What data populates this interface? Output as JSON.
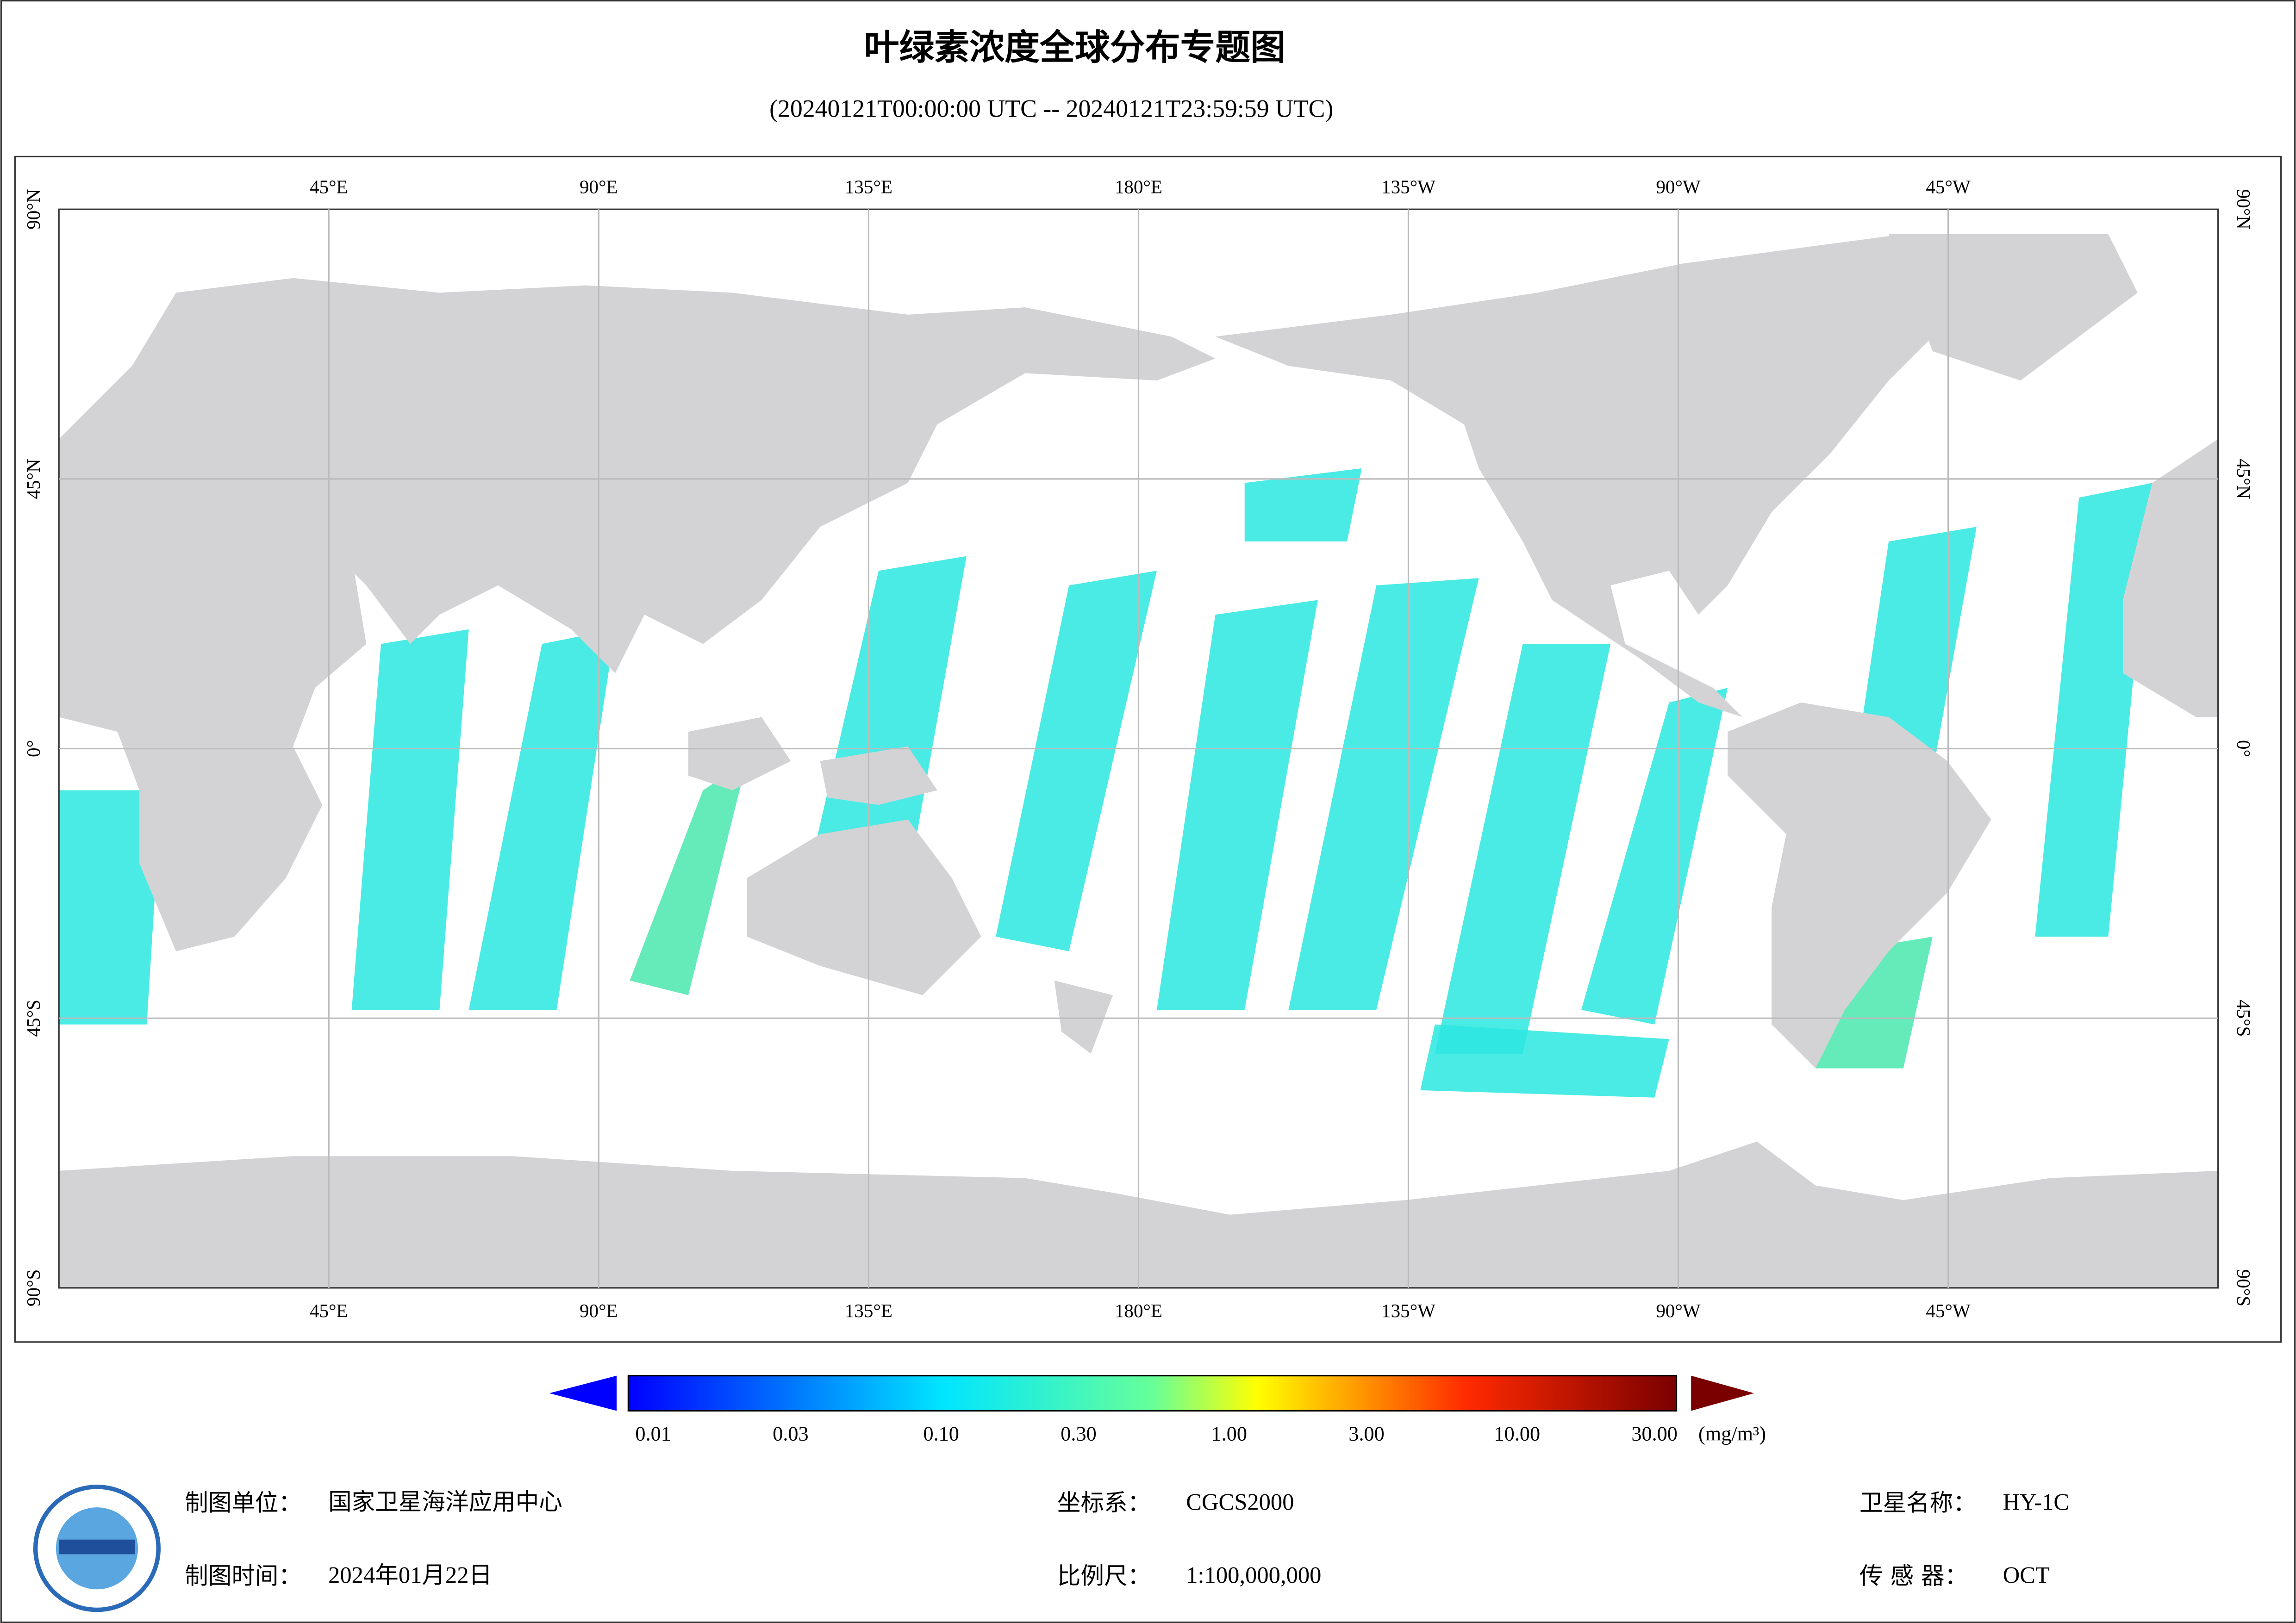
{
  "header": {
    "title": "叶绿素浓度全球分布专题图",
    "subtitle": "(20240121T00:00:00 UTC -- 20240121T23:59:59 UTC)"
  },
  "map": {
    "xlim": [
      0,
      360
    ],
    "ylim": [
      -90,
      90
    ],
    "grid": true,
    "lon_ticks": [
      {
        "value": 45,
        "label": "45°E"
      },
      {
        "value": 90,
        "label": "90°E"
      },
      {
        "value": 135,
        "label": "135°E"
      },
      {
        "value": 180,
        "label": "180°E"
      },
      {
        "value": -135,
        "label": "135°W"
      },
      {
        "value": -90,
        "label": "90°W"
      },
      {
        "value": -45,
        "label": "45°W"
      }
    ],
    "lat_ticks": [
      {
        "value": 90,
        "label": "90°N"
      },
      {
        "value": 45,
        "label": "45°N"
      },
      {
        "value": 0,
        "label": "0°"
      },
      {
        "value": -45,
        "label": "45°S"
      },
      {
        "value": -90,
        "label": "90°S"
      }
    ]
  },
  "colorbar": {
    "scale": "log",
    "ticks": [
      0.01,
      0.03,
      {
        "value": 0.1,
        "label": "0.10"
      },
      {
        "value": 0.3,
        "label": "0.30"
      },
      {
        "value": 1,
        "label": "1.00"
      },
      {
        "value": 3,
        "label": "3.00"
      },
      {
        "value": 10,
        "label": "10.00"
      },
      {
        "value": 30,
        "label": "30.00"
      }
    ],
    "unit": "(mg/m³)"
  },
  "footer": {
    "fields": [
      {
        "label": "制图单位：",
        "value": "国家卫星海洋应用中心"
      },
      {
        "label": "制图时间：",
        "value": "2024年01月22日"
      },
      {
        "label": "坐标系：",
        "value": "CGCS2000"
      },
      {
        "label": "比例尺：",
        "value": "1:100,000,000"
      },
      {
        "label": "卫星名称：",
        "value": "HY-1C"
      },
      {
        "label": "传 感 器：",
        "value": "OCT"
      }
    ]
  }
}
